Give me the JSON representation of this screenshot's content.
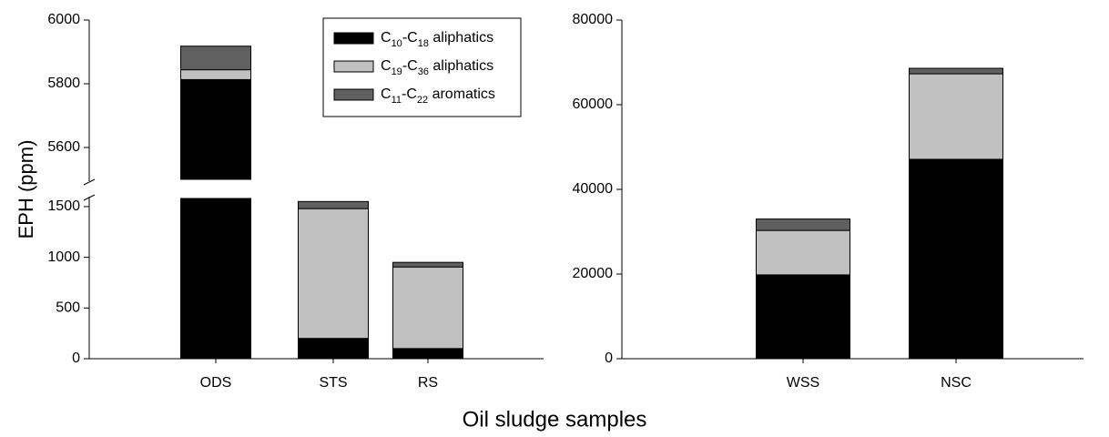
{
  "chart_data": [
    {
      "type": "bar",
      "stacked": true,
      "y_label": "EPH (ppm)",
      "x_label": "Oil sludge samples",
      "categories": [
        "ODS",
        "STS",
        "RS"
      ],
      "series": [
        {
          "name": "C10-C18 aliphatics",
          "color": "#000000",
          "values": [
            5813,
            200,
            100
          ]
        },
        {
          "name": "C19-C36 aliphatics",
          "color": "#c0c0c0",
          "values": [
            31,
            1280,
            805
          ]
        },
        {
          "name": "C11-C22 aromatics",
          "color": "#606060",
          "values": [
            74,
            70,
            45
          ]
        }
      ],
      "ylim": [
        0,
        6000
      ],
      "axis_break": [
        1580,
        5500
      ],
      "yticks": [
        0,
        500,
        1000,
        1500,
        5600,
        5800,
        6000
      ]
    },
    {
      "type": "bar",
      "stacked": true,
      "categories": [
        "WSS",
        "NSC"
      ],
      "series": [
        {
          "color": "#000000",
          "values": [
            19800,
            47100
          ]
        },
        {
          "color": "#c0c0c0",
          "values": [
            10500,
            20200
          ]
        },
        {
          "color": "#606060",
          "values": [
            2700,
            1300
          ]
        }
      ],
      "ylim": [
        0,
        80000
      ],
      "yticks": [
        0,
        20000,
        40000,
        60000,
        80000
      ]
    }
  ]
}
